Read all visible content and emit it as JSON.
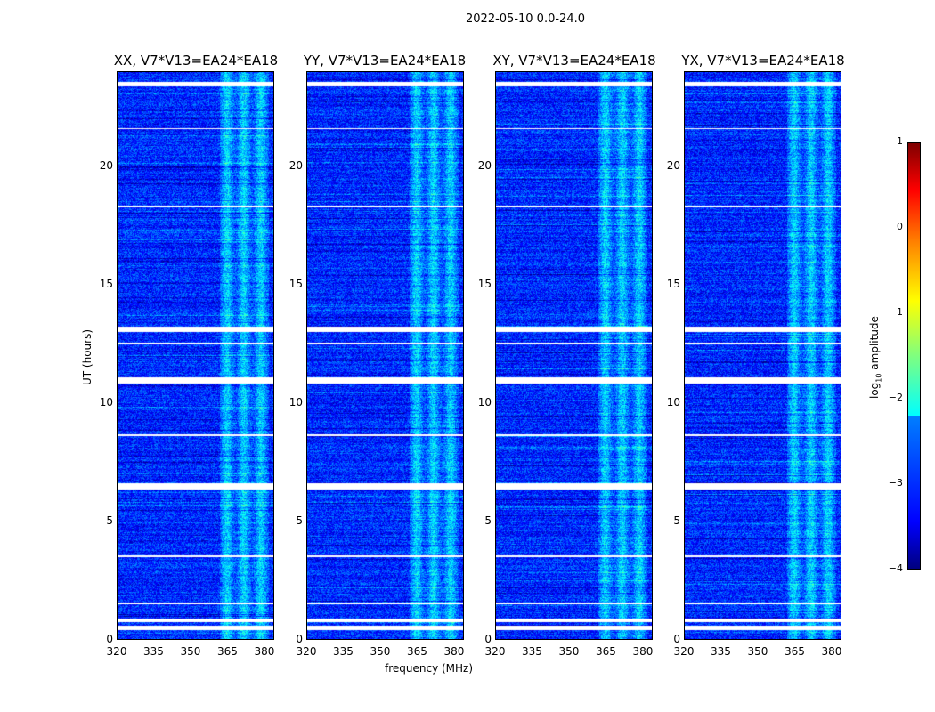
{
  "chart_data": {
    "type": "heatmap",
    "title": "2022-05-10 0.0-24.0",
    "panels": [
      {
        "title": "XX, V7*V13=EA24*EA18"
      },
      {
        "title": "YY, V7*V13=EA24*EA18"
      },
      {
        "title": "XY, V7*V13=EA24*EA18"
      },
      {
        "title": "YX, V7*V13=EA24*EA18"
      }
    ],
    "xlabel": "frequency (MHz)",
    "ylabel": "UT (hours)",
    "xlim": [
      320,
      384
    ],
    "ylim": [
      0,
      24
    ],
    "xticks": [
      "320",
      "335",
      "350",
      "365",
      "380"
    ],
    "xtick_values": [
      320,
      335,
      350,
      365,
      380
    ],
    "yticks": [
      "0",
      "5",
      "10",
      "15",
      "20"
    ],
    "ytick_values": [
      0,
      5,
      10,
      15,
      20
    ],
    "colorbar": {
      "label": "log10 amplitude",
      "label_main": "log",
      "label_sub": "10",
      "label_tail": " amplitude",
      "range": [
        -4,
        1
      ],
      "ticks": [
        "1",
        "0",
        "−1",
        "−2",
        "−3",
        "−4"
      ],
      "tick_values": [
        1,
        0,
        -1,
        -2,
        -3,
        -4
      ],
      "colormap": "jet"
    },
    "background_level": -3.2,
    "bright_band_mhz": [
      362,
      382
    ],
    "bright_band_level": -2.3,
    "flagged_ut_ranges": [
      [
        23.4,
        23.6
      ],
      [
        13.0,
        13.25
      ],
      [
        10.85,
        11.1
      ],
      [
        6.35,
        6.6
      ],
      [
        0.75,
        0.9
      ],
      [
        0.4,
        0.6
      ],
      [
        21.6,
        21.65
      ],
      [
        18.3,
        18.35
      ],
      [
        12.5,
        12.55
      ],
      [
        8.6,
        8.7
      ],
      [
        3.5,
        3.55
      ],
      [
        1.5,
        1.55
      ]
    ]
  }
}
